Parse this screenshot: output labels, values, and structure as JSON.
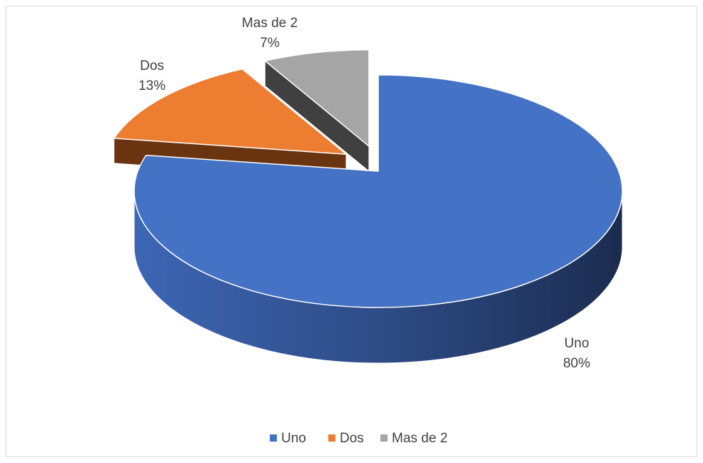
{
  "chart_data": {
    "type": "pie3d",
    "categories": [
      "Uno",
      "Dos",
      "Mas de 2"
    ],
    "values": [
      80,
      13,
      7
    ],
    "value_labels": [
      "80%",
      "13%",
      "7%"
    ],
    "colors": [
      "#4472c4",
      "#ed7d31",
      "#a5a5a5"
    ],
    "exploded": [
      false,
      true,
      true
    ],
    "legend": "bottom"
  }
}
